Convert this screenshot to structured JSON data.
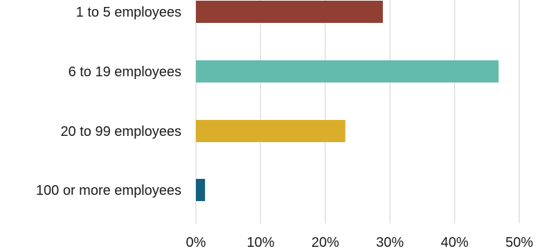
{
  "chart_data": {
    "type": "bar",
    "orientation": "horizontal",
    "categories": [
      "1 to 5 employees",
      "6 to 19 employees",
      "20 to 99 employees",
      "100 or more employees"
    ],
    "values": [
      28.9,
      46.8,
      23.1,
      1.4
    ],
    "colors": [
      "#913E33",
      "#63BBAE",
      "#DAAE2B",
      "#135F80"
    ],
    "xlim": [
      0,
      50
    ],
    "xticks": [
      0,
      10,
      20,
      30,
      40,
      50
    ],
    "tick_format": "percent",
    "grid": "vertical",
    "legend": "none"
  }
}
